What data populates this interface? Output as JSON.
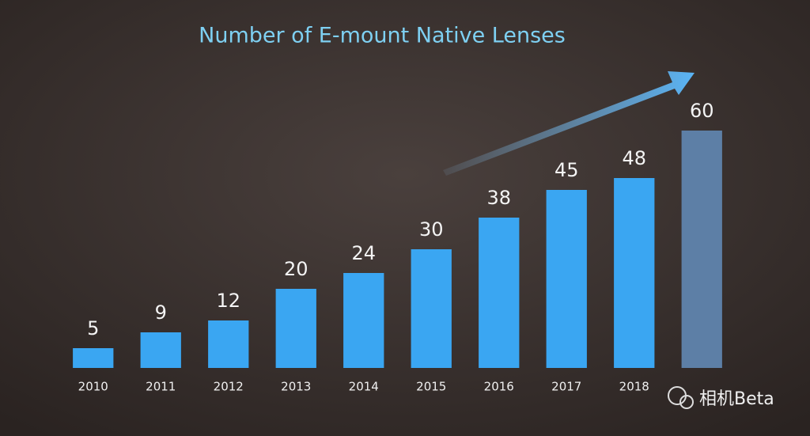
{
  "chart_data": {
    "type": "bar",
    "title": "Number of E-mount Native Lenses",
    "categories": [
      "2010",
      "2011",
      "2012",
      "2013",
      "2014",
      "2015",
      "2016",
      "2017",
      "2018",
      null
    ],
    "values": [
      5,
      9,
      12,
      20,
      24,
      30,
      38,
      45,
      48,
      60
    ],
    "colors": [
      "#3aa6f2",
      "#3aa6f2",
      "#3aa6f2",
      "#3aa6f2",
      "#3aa6f2",
      "#3aa6f2",
      "#3aa6f2",
      "#3aa6f2",
      "#3aa6f2",
      "#5d7fa6"
    ],
    "watermark": "相机Beta"
  }
}
